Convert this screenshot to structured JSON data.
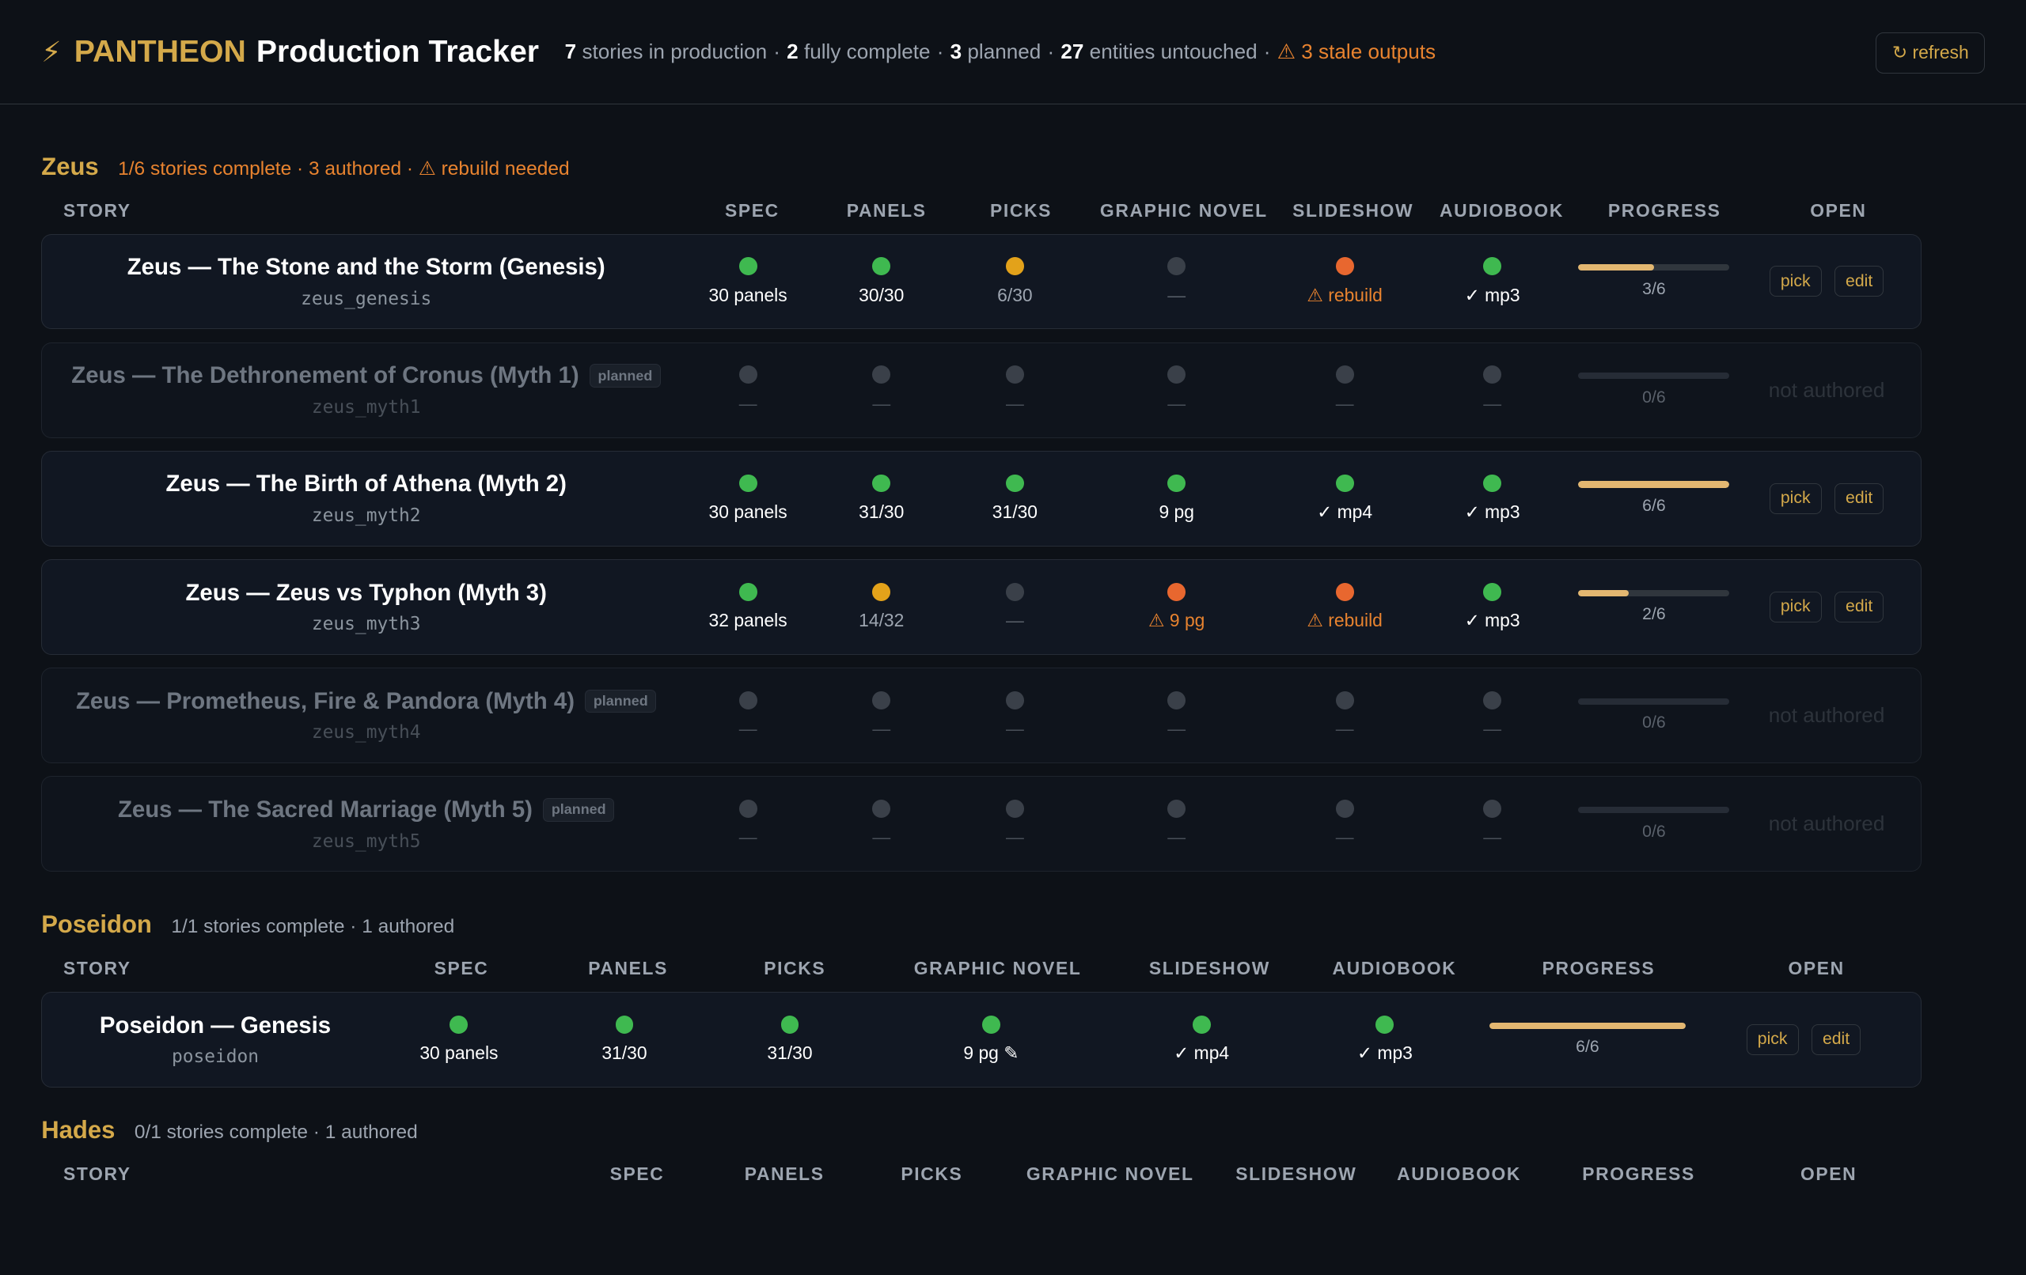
{
  "header": {
    "bolt": "⚡",
    "brand": "PANTHEON",
    "title": "Production Tracker",
    "stats": {
      "in_production_count": "7",
      "in_production_label": "stories in production",
      "complete_count": "2",
      "complete_label": "fully complete",
      "planned_count": "3",
      "planned_label": "planned",
      "untouched_count": "27",
      "untouched_label": "entities untouched",
      "stale": "⚠ 3 stale outputs"
    },
    "refresh_label": "↻ refresh"
  },
  "columns": {
    "story": "STORY",
    "spec": "SPEC",
    "panels": "PANELS",
    "picks": "PICKS",
    "graphic_novel": "GRAPHIC NOVEL",
    "slideshow": "SLIDESHOW",
    "audiobook": "AUDIOBOOK",
    "progress": "PROGRESS",
    "open": "OPEN"
  },
  "buttons": {
    "pick": "pick",
    "edit": "edit",
    "not_authored": "not authored"
  },
  "colors": {
    "accent": "#d4a94a",
    "green": "#3fb950",
    "amber": "#e3a21a",
    "orange": "#e8672f",
    "gray": "#3a4049"
  },
  "sections": [
    {
      "name": "Zeus",
      "meta": "1/6 stories complete · 3 authored · ⚠ rebuild needed",
      "rows": [
        {
          "title": "Zeus — The Stone and the Storm (Genesis)",
          "id": "zeus_genesis",
          "planned": false,
          "spec": {
            "status": "green",
            "text": "30 panels"
          },
          "panels": {
            "status": "green",
            "text": "30/30"
          },
          "picks": {
            "status": "amber",
            "text": "6/30"
          },
          "graphic_novel": {
            "status": "gray",
            "text": "—"
          },
          "slideshow": {
            "status": "orange",
            "text": "⚠ rebuild"
          },
          "audiobook": {
            "status": "green",
            "text": "✓ mp3"
          },
          "progress": {
            "done": 3,
            "total": 6,
            "text": "3/6"
          }
        },
        {
          "title": "Zeus — The Dethronement of Cronus (Myth 1)",
          "id": "zeus_myth1",
          "planned": true,
          "badge": "planned",
          "spec": {
            "status": "gray",
            "text": "—"
          },
          "panels": {
            "status": "gray",
            "text": "—"
          },
          "picks": {
            "status": "gray",
            "text": "—"
          },
          "graphic_novel": {
            "status": "gray",
            "text": "—"
          },
          "slideshow": {
            "status": "gray",
            "text": "—"
          },
          "audiobook": {
            "status": "gray",
            "text": "—"
          },
          "progress": {
            "done": 0,
            "total": 6,
            "text": "0/6"
          }
        },
        {
          "title": "Zeus — The Birth of Athena (Myth 2)",
          "id": "zeus_myth2",
          "planned": false,
          "spec": {
            "status": "green",
            "text": "30 panels"
          },
          "panels": {
            "status": "green",
            "text": "31/30"
          },
          "picks": {
            "status": "green",
            "text": "31/30"
          },
          "graphic_novel": {
            "status": "green",
            "text": "9 pg"
          },
          "slideshow": {
            "status": "green",
            "text": "✓ mp4"
          },
          "audiobook": {
            "status": "green",
            "text": "✓ mp3"
          },
          "progress": {
            "done": 6,
            "total": 6,
            "text": "6/6"
          }
        },
        {
          "title": "Zeus — Zeus vs Typhon (Myth 3)",
          "id": "zeus_myth3",
          "planned": false,
          "spec": {
            "status": "green",
            "text": "32 panels"
          },
          "panels": {
            "status": "amber",
            "text": "14/32"
          },
          "picks": {
            "status": "gray",
            "text": "—"
          },
          "graphic_novel": {
            "status": "orange",
            "text": "⚠ 9 pg"
          },
          "slideshow": {
            "status": "orange",
            "text": "⚠ rebuild"
          },
          "audiobook": {
            "status": "green",
            "text": "✓ mp3"
          },
          "progress": {
            "done": 2,
            "total": 6,
            "text": "2/6"
          }
        },
        {
          "title": "Zeus — Prometheus, Fire & Pandora (Myth 4)",
          "id": "zeus_myth4",
          "planned": true,
          "badge": "planned",
          "spec": {
            "status": "gray",
            "text": "—"
          },
          "panels": {
            "status": "gray",
            "text": "—"
          },
          "picks": {
            "status": "gray",
            "text": "—"
          },
          "graphic_novel": {
            "status": "gray",
            "text": "—"
          },
          "slideshow": {
            "status": "gray",
            "text": "—"
          },
          "audiobook": {
            "status": "gray",
            "text": "—"
          },
          "progress": {
            "done": 0,
            "total": 6,
            "text": "0/6"
          }
        },
        {
          "title": "Zeus — The Sacred Marriage (Myth 5)",
          "id": "zeus_myth5",
          "planned": true,
          "badge": "planned",
          "spec": {
            "status": "gray",
            "text": "—"
          },
          "panels": {
            "status": "gray",
            "text": "—"
          },
          "picks": {
            "status": "gray",
            "text": "—"
          },
          "graphic_novel": {
            "status": "gray",
            "text": "—"
          },
          "slideshow": {
            "status": "gray",
            "text": "—"
          },
          "audiobook": {
            "status": "gray",
            "text": "—"
          },
          "progress": {
            "done": 0,
            "total": 6,
            "text": "0/6"
          }
        }
      ]
    },
    {
      "name": "Poseidon",
      "meta": "1/1 stories complete · 1 authored",
      "rows": [
        {
          "title": "Poseidon — Genesis",
          "id": "poseidon",
          "planned": false,
          "spec": {
            "status": "green",
            "text": "30 panels"
          },
          "panels": {
            "status": "green",
            "text": "31/30"
          },
          "picks": {
            "status": "green",
            "text": "31/30"
          },
          "graphic_novel": {
            "status": "green",
            "text": "9 pg ✎"
          },
          "slideshow": {
            "status": "green",
            "text": "✓ mp4"
          },
          "audiobook": {
            "status": "green",
            "text": "✓ mp3"
          },
          "progress": {
            "done": 6,
            "total": 6,
            "text": "6/6"
          }
        }
      ]
    },
    {
      "name": "Hades",
      "meta": "0/1 stories complete · 1 authored",
      "rows": []
    }
  ]
}
